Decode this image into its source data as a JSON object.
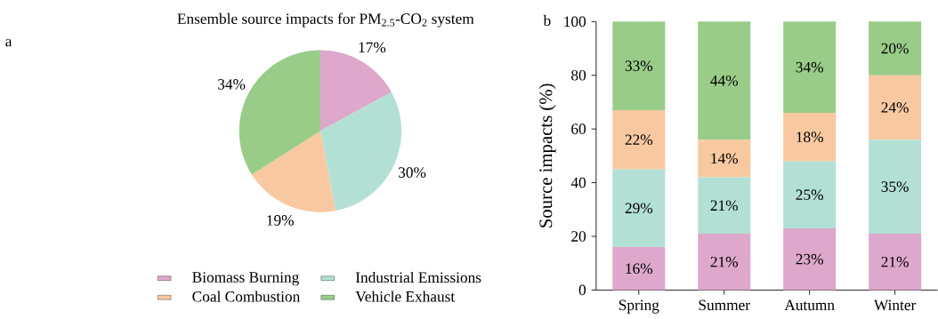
{
  "chart_data": [
    {
      "type": "pie",
      "title": "Ensemble source impacts for PM$_{2.5}$-CO$_{2}$ system",
      "annotations": [
        "a"
      ],
      "categories": [
        "Biomass Burning",
        "Industrial Emissions",
        "Coal Combustion",
        "Vehicle Exhaust"
      ],
      "values": [
        17,
        30,
        19,
        34
      ],
      "value_labels": [
        "17%",
        "30%",
        "19%",
        "34%"
      ],
      "colors": [
        "#dda8cc",
        "#b3e0d4",
        "#f8c9a0",
        "#99cc88"
      ],
      "legend": "bottom"
    },
    {
      "type": "bar",
      "stacked": true,
      "ylabel": "Source impacts (%)",
      "annotations": [
        "b"
      ],
      "categories": [
        "Spring",
        "Summer",
        "Autumn",
        "Winter"
      ],
      "ylim": [
        0,
        100
      ],
      "yticks": [
        0,
        20,
        40,
        60,
        80,
        100
      ],
      "series": [
        {
          "color": "#dda8cc",
          "values": [
            16,
            21,
            23,
            21
          ],
          "value_labels": [
            "16%",
            "21%",
            "23%",
            "21%"
          ]
        },
        {
          "color": "#b3e0d4",
          "values": [
            29,
            21,
            25,
            35
          ],
          "value_labels": [
            "29%",
            "21%",
            "25%",
            "35%"
          ]
        },
        {
          "color": "#f8c9a0",
          "values": [
            22,
            14,
            18,
            24
          ],
          "value_labels": [
            "22%",
            "14%",
            "18%",
            "24%"
          ]
        },
        {
          "color": "#99cc88",
          "values": [
            33,
            44,
            34,
            20
          ],
          "value_labels": [
            "33%",
            "44%",
            "34%",
            "20%"
          ]
        }
      ]
    }
  ]
}
